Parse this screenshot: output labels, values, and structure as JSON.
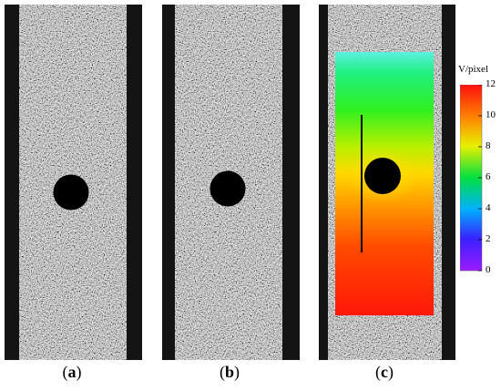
{
  "panels": [
    {
      "id": "a",
      "caption_letter": "a"
    },
    {
      "id": "b",
      "caption_letter": "b"
    },
    {
      "id": "c",
      "caption_letter": "c"
    }
  ],
  "colorbar": {
    "unit_label": "V/pixel",
    "ticks": [
      "0",
      "2",
      "4",
      "6",
      "8",
      "10",
      "12"
    ],
    "min": 0,
    "max": 12,
    "colors": [
      "#9b1cff",
      "#2020ff",
      "#00c8ff",
      "#00e040",
      "#f0f000",
      "#ff8000",
      "#ff1010"
    ]
  }
}
